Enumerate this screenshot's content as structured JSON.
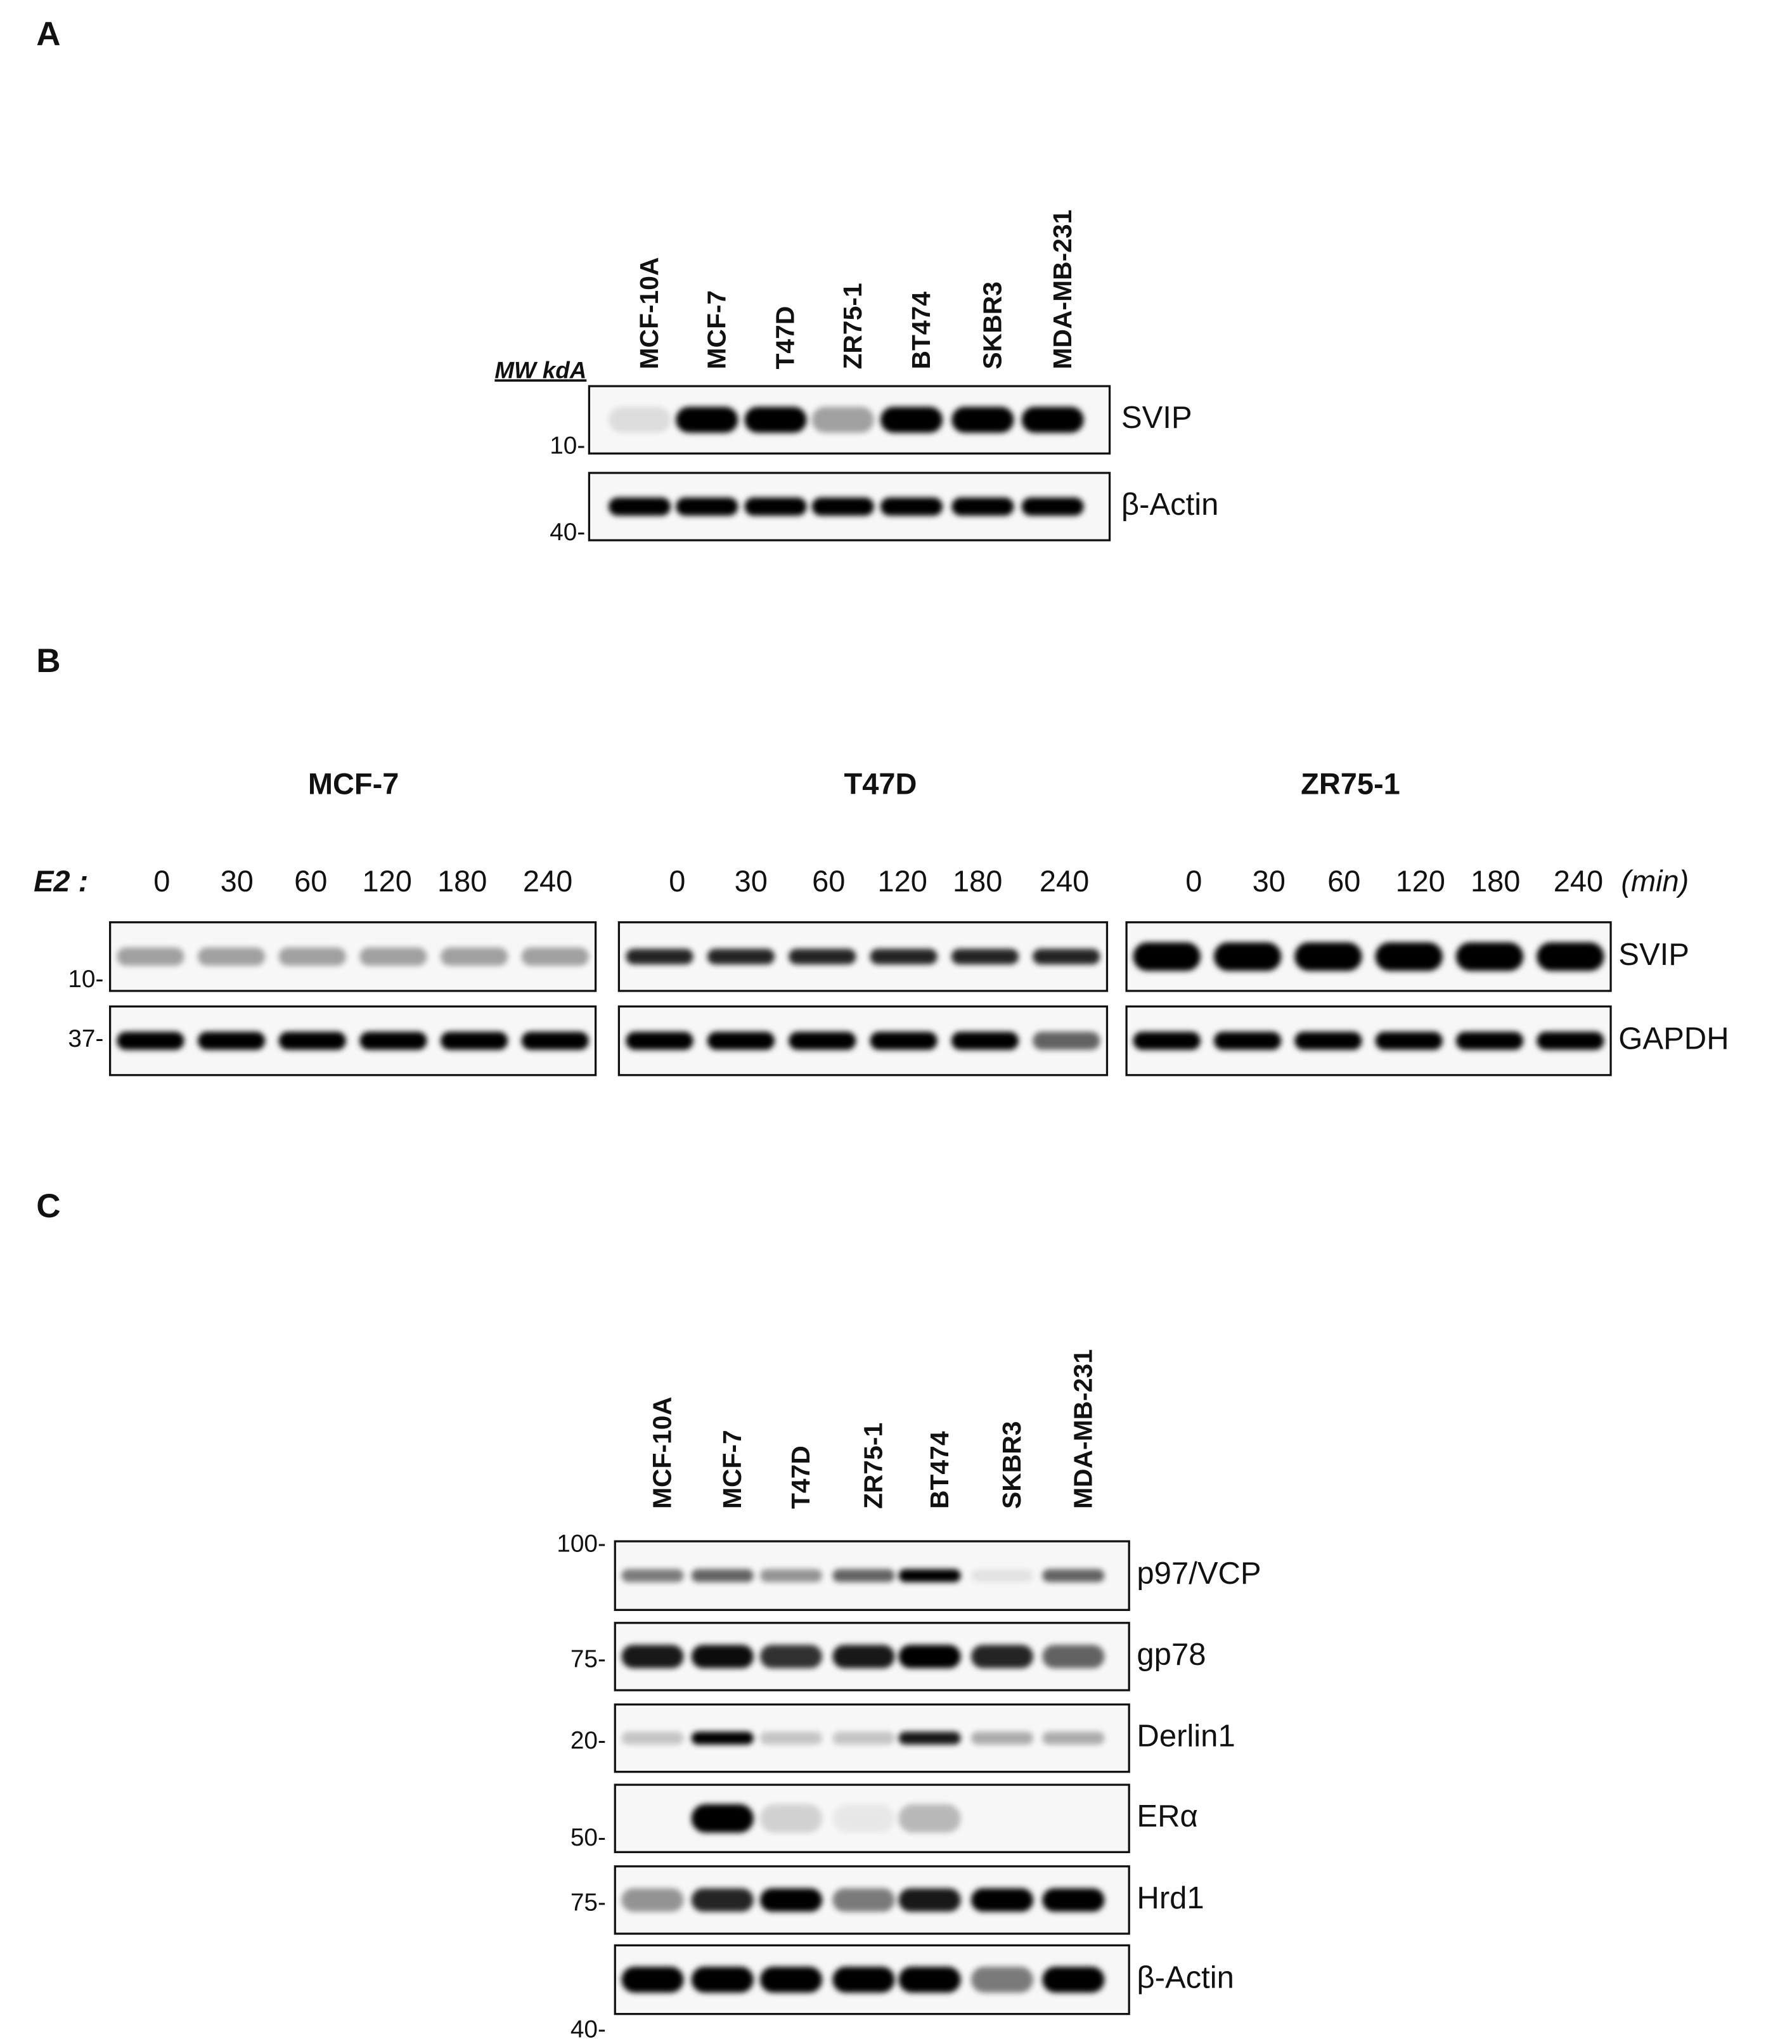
{
  "panels": [
    {
      "label": "A",
      "mw_header": "MW kdA",
      "lanes": [
        "MCF-10A",
        "MCF-7",
        "T47D",
        "ZR75-1",
        "BT474",
        "SKBR3",
        "MDA-MB-231"
      ],
      "blots": [
        {
          "protein": "SVIP",
          "mw": "10-"
        },
        {
          "protein": "β-Actin",
          "mw": "40-"
        }
      ]
    },
    {
      "label": "B",
      "treatment": "E2 :",
      "unit": "(min)",
      "groups": [
        {
          "title": "MCF-7",
          "timepoints": [
            0,
            30,
            60,
            120,
            180,
            240
          ]
        },
        {
          "title": "T47D",
          "timepoints": [
            0,
            30,
            60,
            120,
            180,
            240
          ]
        },
        {
          "title": "ZR75-1",
          "timepoints": [
            0,
            30,
            60,
            120,
            180,
            240
          ]
        }
      ],
      "blots": [
        {
          "protein": "SVIP",
          "mw": "10-"
        },
        {
          "protein": "GAPDH",
          "mw": "37-"
        }
      ]
    },
    {
      "label": "C",
      "lanes": [
        "MCF-10A",
        "MCF-7",
        "T47D",
        "ZR75-1",
        "BT474",
        "SKBR3",
        "MDA-MB-231"
      ],
      "blots": [
        {
          "protein": "p97/VCP",
          "mw": "100-"
        },
        {
          "protein": "gp78",
          "mw": "75-"
        },
        {
          "protein": "Derlin1",
          "mw": "20-"
        },
        {
          "protein": "ERα",
          "mw": "50-"
        },
        {
          "protein": "Hrd1",
          "mw": "75-"
        },
        {
          "protein": "β-Actin",
          "mw": "40-"
        }
      ]
    }
  ]
}
